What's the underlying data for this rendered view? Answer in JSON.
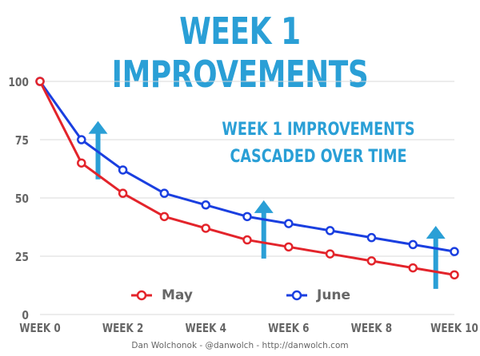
{
  "title": "WEEK 1 IMPROVEMENTS",
  "annotation": {
    "line1": "WEEK 1 IMPROVEMENTS",
    "line2": "CASCADED OVER TIME"
  },
  "credit": "Dan Wolchonok - @danwolch - http://danwolch.com",
  "colors": {
    "title": "#2a9fd6",
    "may": "#e3242b",
    "june": "#1a3fe0",
    "arrow": "#2a9fd6",
    "grid": "#d9d9d9",
    "axis_text": "#666666"
  },
  "chart_data": {
    "type": "line",
    "title": "WEEK 1 IMPROVEMENTS",
    "x": [
      0,
      1,
      2,
      3,
      4,
      5,
      6,
      7,
      8,
      9,
      10
    ],
    "x_tick_labels": [
      "WEEK 0",
      "WEEK 2",
      "WEEK 4",
      "WEEK 6",
      "WEEK 8",
      "WEEK 10"
    ],
    "x_tick_values": [
      0,
      2,
      4,
      6,
      8,
      10
    ],
    "y_tick_labels": [
      "0",
      "25",
      "50",
      "75",
      "100"
    ],
    "y_tick_values": [
      0,
      25,
      50,
      75,
      100
    ],
    "xlim": [
      0,
      10
    ],
    "ylim": [
      0,
      100
    ],
    "grid": "horizontal",
    "legend_position": "bottom",
    "series": [
      {
        "name": "May",
        "color": "#e3242b",
        "values": [
          100,
          65,
          52,
          42,
          37,
          32,
          29,
          26,
          23,
          20,
          17
        ]
      },
      {
        "name": "June",
        "color": "#1a3fe0",
        "values": [
          100,
          75,
          62,
          52,
          47,
          42,
          39,
          36,
          33,
          30,
          27
        ]
      }
    ],
    "arrows": [
      {
        "x": 1.4,
        "y_from": 58,
        "y_to": 83
      },
      {
        "x": 5.4,
        "y_from": 24,
        "y_to": 49
      },
      {
        "x": 9.55,
        "y_from": 11,
        "y_to": 38
      }
    ]
  }
}
